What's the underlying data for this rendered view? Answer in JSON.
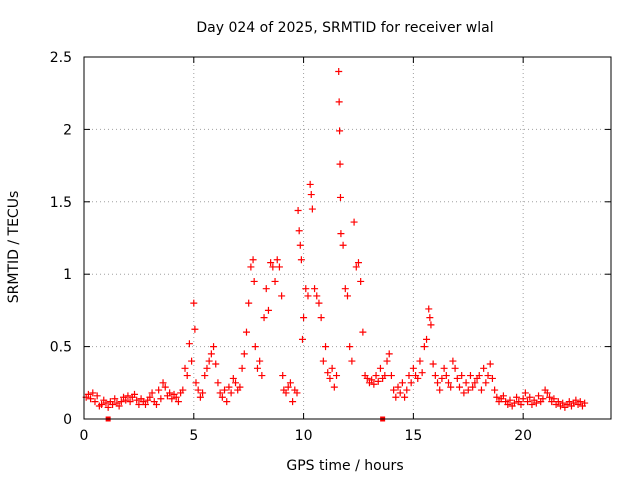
{
  "chart_data": {
    "type": "scatter",
    "title": "Day 024 of 2025, SRMTID for receiver wlal",
    "xlabel": "GPS time / hours",
    "ylabel": "SRMTID / TECUs",
    "xlim": [
      0,
      24
    ],
    "ylim": [
      0,
      2.5
    ],
    "xticks": [
      0,
      5,
      10,
      15,
      20
    ],
    "yticks": [
      0,
      0.5,
      1,
      1.5,
      2,
      2.5
    ],
    "ytick_labels": [
      "0",
      "0.5",
      "1",
      "1.5",
      "2",
      "2.5"
    ],
    "grid": true,
    "marker": "+",
    "color": "#ff0000",
    "outliers_marked_on_axis": [
      1.1,
      13.6
    ],
    "series": [
      {
        "name": "SRMTID",
        "points": [
          [
            0.1,
            0.15
          ],
          [
            0.2,
            0.17
          ],
          [
            0.3,
            0.14
          ],
          [
            0.4,
            0.18
          ],
          [
            0.5,
            0.12
          ],
          [
            0.6,
            0.16
          ],
          [
            0.7,
            0.09
          ],
          [
            0.8,
            0.1
          ],
          [
            0.9,
            0.13
          ],
          [
            1.0,
            0.11
          ],
          [
            1.1,
            0.08
          ],
          [
            1.2,
            0.12
          ],
          [
            1.3,
            0.1
          ],
          [
            1.4,
            0.14
          ],
          [
            1.5,
            0.11
          ],
          [
            1.6,
            0.09
          ],
          [
            1.7,
            0.12
          ],
          [
            1.8,
            0.15
          ],
          [
            1.9,
            0.13
          ],
          [
            2.0,
            0.16
          ],
          [
            2.1,
            0.12
          ],
          [
            2.2,
            0.15
          ],
          [
            2.3,
            0.17
          ],
          [
            2.4,
            0.13
          ],
          [
            2.5,
            0.1
          ],
          [
            2.6,
            0.14
          ],
          [
            2.7,
            0.12
          ],
          [
            2.8,
            0.1
          ],
          [
            2.9,
            0.13
          ],
          [
            3.0,
            0.15
          ],
          [
            3.1,
            0.18
          ],
          [
            3.2,
            0.12
          ],
          [
            3.3,
            0.1
          ],
          [
            3.4,
            0.2
          ],
          [
            3.5,
            0.14
          ],
          [
            3.6,
            0.25
          ],
          [
            3.7,
            0.22
          ],
          [
            3.8,
            0.16
          ],
          [
            3.9,
            0.18
          ],
          [
            4.0,
            0.14
          ],
          [
            4.1,
            0.17
          ],
          [
            4.2,
            0.15
          ],
          [
            4.3,
            0.12
          ],
          [
            4.4,
            0.18
          ],
          [
            4.5,
            0.2
          ],
          [
            4.6,
            0.35
          ],
          [
            4.7,
            0.3
          ],
          [
            4.8,
            0.52
          ],
          [
            4.9,
            0.4
          ],
          [
            5.0,
            0.8
          ],
          [
            5.05,
            0.62
          ],
          [
            5.1,
            0.25
          ],
          [
            5.2,
            0.2
          ],
          [
            5.3,
            0.15
          ],
          [
            5.4,
            0.18
          ],
          [
            5.5,
            0.3
          ],
          [
            5.6,
            0.35
          ],
          [
            5.7,
            0.4
          ],
          [
            5.8,
            0.45
          ],
          [
            5.9,
            0.5
          ],
          [
            6.0,
            0.38
          ],
          [
            6.1,
            0.25
          ],
          [
            6.2,
            0.18
          ],
          [
            6.3,
            0.15
          ],
          [
            6.4,
            0.2
          ],
          [
            6.5,
            0.12
          ],
          [
            6.6,
            0.22
          ],
          [
            6.7,
            0.18
          ],
          [
            6.8,
            0.28
          ],
          [
            6.9,
            0.25
          ],
          [
            7.0,
            0.2
          ],
          [
            7.1,
            0.22
          ],
          [
            7.2,
            0.35
          ],
          [
            7.3,
            0.45
          ],
          [
            7.4,
            0.6
          ],
          [
            7.5,
            0.8
          ],
          [
            7.6,
            1.05
          ],
          [
            7.7,
            1.1
          ],
          [
            7.75,
            0.95
          ],
          [
            7.8,
            0.5
          ],
          [
            7.9,
            0.35
          ],
          [
            8.0,
            0.4
          ],
          [
            8.1,
            0.3
          ],
          [
            8.2,
            0.7
          ],
          [
            8.3,
            0.9
          ],
          [
            8.4,
            0.75
          ],
          [
            8.5,
            1.08
          ],
          [
            8.6,
            1.05
          ],
          [
            8.7,
            0.95
          ],
          [
            8.8,
            1.1
          ],
          [
            8.9,
            1.05
          ],
          [
            9.0,
            0.85
          ],
          [
            9.05,
            0.3
          ],
          [
            9.1,
            0.2
          ],
          [
            9.2,
            0.18
          ],
          [
            9.3,
            0.22
          ],
          [
            9.4,
            0.25
          ],
          [
            9.5,
            0.12
          ],
          [
            9.6,
            0.2
          ],
          [
            9.7,
            0.18
          ],
          [
            9.75,
            1.44
          ],
          [
            9.8,
            1.3
          ],
          [
            9.85,
            1.2
          ],
          [
            9.9,
            1.1
          ],
          [
            9.95,
            0.55
          ],
          [
            10.0,
            0.7
          ],
          [
            10.1,
            0.9
          ],
          [
            10.2,
            0.85
          ],
          [
            10.3,
            1.62
          ],
          [
            10.35,
            1.55
          ],
          [
            10.4,
            1.45
          ],
          [
            10.5,
            0.9
          ],
          [
            10.6,
            0.85
          ],
          [
            10.7,
            0.8
          ],
          [
            10.8,
            0.7
          ],
          [
            10.9,
            0.4
          ],
          [
            11.0,
            0.5
          ],
          [
            11.1,
            0.32
          ],
          [
            11.2,
            0.28
          ],
          [
            11.3,
            0.35
          ],
          [
            11.4,
            0.22
          ],
          [
            11.5,
            0.3
          ],
          [
            11.6,
            2.4
          ],
          [
            11.62,
            2.19
          ],
          [
            11.64,
            1.99
          ],
          [
            11.66,
            1.76
          ],
          [
            11.68,
            1.53
          ],
          [
            11.7,
            1.28
          ],
          [
            11.8,
            1.2
          ],
          [
            11.9,
            0.9
          ],
          [
            12.0,
            0.85
          ],
          [
            12.1,
            0.5
          ],
          [
            12.2,
            0.4
          ],
          [
            12.3,
            1.36
          ],
          [
            12.4,
            1.05
          ],
          [
            12.5,
            1.08
          ],
          [
            12.6,
            0.95
          ],
          [
            12.7,
            0.6
          ],
          [
            12.8,
            0.3
          ],
          [
            12.9,
            0.28
          ],
          [
            13.0,
            0.25
          ],
          [
            13.1,
            0.27
          ],
          [
            13.2,
            0.24
          ],
          [
            13.3,
            0.3
          ],
          [
            13.4,
            0.26
          ],
          [
            13.5,
            0.35
          ],
          [
            13.6,
            0.28
          ],
          [
            13.7,
            0.3
          ],
          [
            13.8,
            0.4
          ],
          [
            13.9,
            0.45
          ],
          [
            14.0,
            0.3
          ],
          [
            14.1,
            0.2
          ],
          [
            14.2,
            0.15
          ],
          [
            14.3,
            0.22
          ],
          [
            14.4,
            0.18
          ],
          [
            14.5,
            0.25
          ],
          [
            14.6,
            0.15
          ],
          [
            14.7,
            0.2
          ],
          [
            14.8,
            0.3
          ],
          [
            14.9,
            0.25
          ],
          [
            15.0,
            0.35
          ],
          [
            15.1,
            0.3
          ],
          [
            15.2,
            0.28
          ],
          [
            15.3,
            0.4
          ],
          [
            15.4,
            0.32
          ],
          [
            15.5,
            0.5
          ],
          [
            15.6,
            0.55
          ],
          [
            15.7,
            0.76
          ],
          [
            15.75,
            0.7
          ],
          [
            15.8,
            0.65
          ],
          [
            15.9,
            0.38
          ],
          [
            16.0,
            0.3
          ],
          [
            16.1,
            0.25
          ],
          [
            16.2,
            0.2
          ],
          [
            16.3,
            0.28
          ],
          [
            16.4,
            0.35
          ],
          [
            16.5,
            0.3
          ],
          [
            16.6,
            0.25
          ],
          [
            16.7,
            0.22
          ],
          [
            16.8,
            0.4
          ],
          [
            16.9,
            0.35
          ],
          [
            17.0,
            0.28
          ],
          [
            17.1,
            0.22
          ],
          [
            17.2,
            0.3
          ],
          [
            17.3,
            0.18
          ],
          [
            17.4,
            0.25
          ],
          [
            17.5,
            0.2
          ],
          [
            17.6,
            0.3
          ],
          [
            17.7,
            0.22
          ],
          [
            17.8,
            0.25
          ],
          [
            17.9,
            0.28
          ],
          [
            18.0,
            0.3
          ],
          [
            18.1,
            0.2
          ],
          [
            18.2,
            0.35
          ],
          [
            18.3,
            0.25
          ],
          [
            18.4,
            0.3
          ],
          [
            18.5,
            0.38
          ],
          [
            18.6,
            0.28
          ],
          [
            18.7,
            0.2
          ],
          [
            18.8,
            0.15
          ],
          [
            18.9,
            0.12
          ],
          [
            19.0,
            0.14
          ],
          [
            19.1,
            0.16
          ],
          [
            19.2,
            0.12
          ],
          [
            19.3,
            0.1
          ],
          [
            19.4,
            0.13
          ],
          [
            19.5,
            0.09
          ],
          [
            19.6,
            0.11
          ],
          [
            19.7,
            0.15
          ],
          [
            19.8,
            0.12
          ],
          [
            19.9,
            0.1
          ],
          [
            20.0,
            0.14
          ],
          [
            20.1,
            0.18
          ],
          [
            20.2,
            0.12
          ],
          [
            20.3,
            0.15
          ],
          [
            20.4,
            0.1
          ],
          [
            20.5,
            0.13
          ],
          [
            20.6,
            0.11
          ],
          [
            20.7,
            0.16
          ],
          [
            20.8,
            0.12
          ],
          [
            20.9,
            0.14
          ],
          [
            21.0,
            0.2
          ],
          [
            21.1,
            0.18
          ],
          [
            21.2,
            0.15
          ],
          [
            21.3,
            0.12
          ],
          [
            21.4,
            0.14
          ],
          [
            21.5,
            0.1
          ],
          [
            21.6,
            0.12
          ],
          [
            21.7,
            0.09
          ],
          [
            21.8,
            0.11
          ],
          [
            21.9,
            0.08
          ],
          [
            22.0,
            0.1
          ],
          [
            22.1,
            0.12
          ],
          [
            22.2,
            0.09
          ],
          [
            22.3,
            0.11
          ],
          [
            22.4,
            0.13
          ],
          [
            22.5,
            0.1
          ],
          [
            22.6,
            0.12
          ],
          [
            22.7,
            0.09
          ],
          [
            22.8,
            0.11
          ]
        ]
      }
    ]
  }
}
